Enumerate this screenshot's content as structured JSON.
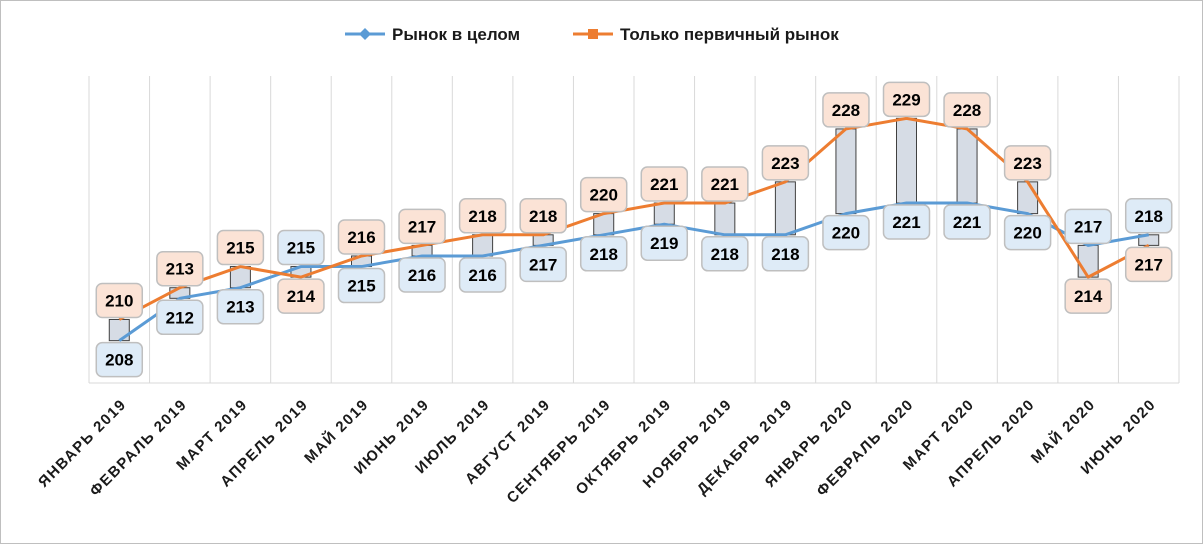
{
  "chart_data": {
    "type": "line",
    "categories": [
      "ЯНВАРЬ 2019",
      "ФЕВРАЛЬ 2019",
      "МАРТ 2019",
      "АПРЕЛЬ 2019",
      "МАЙ 2019",
      "ИЮНЬ 2019",
      "ИЮЛЬ 2019",
      "АВГУСТ 2019",
      "СЕНТЯБРЬ 2019",
      "ОКТЯБРЬ 2019",
      "НОЯБРЬ 2019",
      "ДЕКАБРЬ 2019",
      "ЯНВАРЬ 2020",
      "ФЕВРАЛЬ 2020",
      "МАРТ 2020",
      "АПРЕЛЬ 2020",
      "МАЙ 2020",
      "ИЮНЬ 2020"
    ],
    "series": [
      {
        "name": "Рынок в целом",
        "color": "#5b9bd5",
        "marker": "diamond",
        "values": [
          208,
          212,
          213,
          215,
          215,
          216,
          216,
          217,
          218,
          219,
          218,
          218,
          220,
          221,
          221,
          220,
          217,
          218
        ]
      },
      {
        "name": "Только первичный рынок",
        "color": "#ed7d31",
        "marker": "square",
        "values": [
          210,
          213,
          215,
          214,
          216,
          217,
          218,
          218,
          220,
          221,
          221,
          223,
          228,
          229,
          228,
          223,
          214,
          217
        ]
      }
    ],
    "ylim": [
      204,
      233
    ],
    "grid": "vertical",
    "legend": "top",
    "high_low_lines": true,
    "updown_bars": true,
    "data_labels": true
  }
}
